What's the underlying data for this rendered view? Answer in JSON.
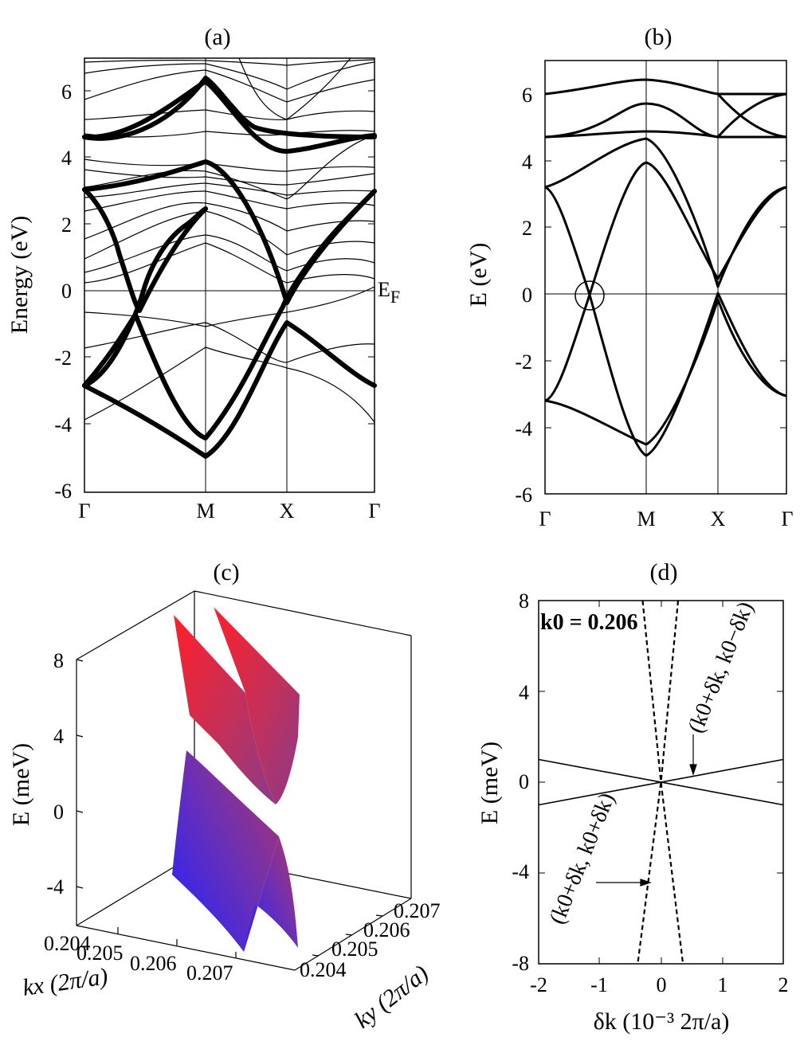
{
  "panels": {
    "a": {
      "title": "(a)",
      "ylabel": "Energy (eV)",
      "ef_label_main": "E",
      "ef_label_sub": "F",
      "yticks": [
        "6",
        "4",
        "2",
        "0",
        "-2",
        "-4",
        "-6"
      ],
      "xticks": [
        "Γ",
        "M",
        "X",
        "Γ"
      ]
    },
    "b": {
      "title": "(b)",
      "ylabel": "E (eV)",
      "yticks": [
        "6",
        "4",
        "2",
        "0",
        "-2",
        "-4",
        "-6"
      ],
      "xticks": [
        "Γ",
        "M",
        "X",
        "Γ"
      ]
    },
    "c": {
      "title": "(c)",
      "ylabel": "E (meV)",
      "zticks": [
        "8",
        "4",
        "0",
        "-4"
      ],
      "kx_ticks": [
        "0.204",
        "0.205",
        "0.206",
        "0.207"
      ],
      "ky_ticks": [
        "0.204",
        "0.205",
        "0.206",
        "0.207"
      ],
      "kx_label": "kx (2π/a)",
      "ky_label": "ky (2π/a)"
    },
    "d": {
      "title": "(d)",
      "ylabel": "E (meV)",
      "xlabel": "δk (10⁻³ 2π/a)",
      "annotation_k0": "k0 = 0.206",
      "annotation_upper": "(k0+δk, k0−δk)",
      "annotation_lower": "(k0+δk, k0+δk)",
      "yticks": [
        "8",
        "4",
        "0",
        "-4",
        "-8"
      ],
      "xticks": [
        "-2",
        "-1",
        "0",
        "1",
        "2"
      ]
    }
  },
  "chart_data": [
    {
      "panel": "a",
      "type": "line",
      "title": "(a)",
      "ylabel": "Energy (eV)",
      "xticks": [
        "Γ",
        "M",
        "X",
        "Γ"
      ],
      "ylim": [
        -6,
        7
      ],
      "series": [
        {
          "values": [
            [
              0,
              -2.85
            ],
            [
              0.2,
              -3.5
            ],
            [
              0.5,
              -4.5
            ],
            [
              0.8,
              -4.1
            ],
            [
              1.0,
              -3.2
            ],
            [
              1.4,
              -0.9
            ],
            [
              1.8,
              -2.5
            ],
            [
              2.3,
              -2.85
            ]
          ]
        },
        {
          "values": [
            [
              0,
              -2.85
            ],
            [
              0.3,
              -1.8
            ],
            [
              0.5,
              0.0
            ],
            [
              0.7,
              -1.5
            ],
            [
              1.0,
              -4.95
            ],
            [
              1.3,
              -1.9
            ],
            [
              1.5,
              -0.5
            ],
            [
              2.0,
              1.8
            ],
            [
              2.3,
              3.0
            ]
          ]
        },
        {
          "values": [
            [
              0,
              3.0
            ],
            [
              0.3,
              1.0
            ],
            [
              0.5,
              -0.5
            ],
            [
              1.0,
              3.9
            ],
            [
              1.3,
              0.5
            ],
            [
              1.4,
              0.9
            ],
            [
              2.3,
              3.0
            ]
          ]
        },
        {
          "values": [
            [
              0,
              4.6
            ],
            [
              0.5,
              4.7
            ],
            [
              1.0,
              6.3
            ],
            [
              1.3,
              4.2
            ],
            [
              2.3,
              4.6
            ]
          ]
        }
      ]
    },
    {
      "panel": "b",
      "type": "line",
      "title": "(b)",
      "ylabel": "E (eV)",
      "xticks": [
        "Γ",
        "M",
        "X",
        "Γ"
      ],
      "ylim": [
        -6,
        7
      ],
      "series": [
        {
          "values": [
            [
              0,
              -3.2
            ],
            [
              0.3,
              -1.5
            ],
            [
              1.0,
              3.9
            ],
            [
              1.4,
              0.2
            ],
            [
              2.3,
              3.2
            ]
          ]
        },
        {
          "values": [
            [
              0,
              -3.2
            ],
            [
              0.5,
              -3.8
            ],
            [
              1.0,
              -4.6
            ],
            [
              1.4,
              -0.1
            ],
            [
              2.3,
              -3.2
            ]
          ]
        },
        {
          "values": [
            [
              0,
              3.2
            ],
            [
              0.3,
              0.5
            ],
            [
              1.0,
              -4.9
            ],
            [
              1.4,
              0.0
            ],
            [
              2.3,
              -3.2
            ]
          ]
        },
        {
          "values": [
            [
              0,
              3.2
            ],
            [
              0.5,
              3.8
            ],
            [
              1.0,
              4.7
            ],
            [
              1.4,
              0.4
            ],
            [
              2.3,
              3.2
            ]
          ]
        },
        {
          "values": [
            [
              0,
              4.7
            ],
            [
              1.0,
              4.75
            ],
            [
              1.4,
              4.7
            ],
            [
              2.3,
              4.7
            ]
          ]
        },
        {
          "values": [
            [
              0,
              6.0
            ],
            [
              1.0,
              6.4
            ],
            [
              1.4,
              6.0
            ],
            [
              2.3,
              6.0
            ]
          ]
        },
        {
          "values": [
            [
              0,
              4.7
            ],
            [
              1.0,
              5.7
            ],
            [
              1.4,
              4.7
            ],
            [
              2.3,
              4.7
            ]
          ]
        }
      ]
    },
    {
      "panel": "c",
      "type": "surface",
      "title": "(c)",
      "xlabel": "kx (2π/a)",
      "ylabel": "ky (2π/a)",
      "zlabel": "E (meV)",
      "xlim": [
        0.204,
        0.207
      ],
      "ylim": [
        0.204,
        0.207
      ],
      "zlim": [
        -6,
        10
      ]
    },
    {
      "panel": "d",
      "type": "line",
      "title": "(d)",
      "xlabel": "δk (10⁻³ 2π/a)",
      "ylabel": "E (meV)",
      "xlim": [
        -2,
        2
      ],
      "ylim": [
        -8,
        8
      ],
      "series": [
        {
          "name": "(k0+δk, k0−δk)",
          "style": "solid",
          "values": [
            [
              -2,
              1.0
            ],
            [
              2,
              -1.0
            ]
          ]
        },
        {
          "name": "(k0+δk, k0−δk)",
          "style": "solid",
          "values": [
            [
              -2,
              -1.0
            ],
            [
              2,
              1.0
            ]
          ]
        },
        {
          "name": "(k0+δk, k0+δk)",
          "style": "dashed",
          "values": [
            [
              -0.3,
              8
            ],
            [
              0,
              0
            ],
            [
              0.36,
              -8
            ]
          ]
        },
        {
          "name": "(k0+δk, k0+δk)",
          "style": "dashed",
          "values": [
            [
              0.28,
              8
            ],
            [
              0,
              0
            ],
            [
              -0.38,
              -8
            ]
          ]
        }
      ]
    }
  ]
}
